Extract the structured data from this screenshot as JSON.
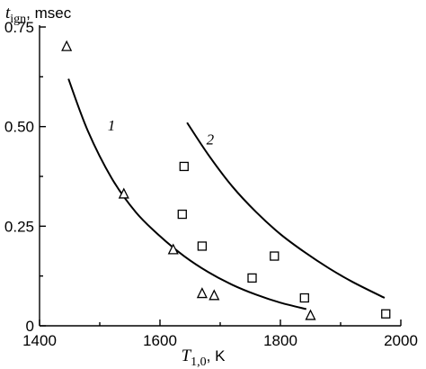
{
  "chart_data": {
    "type": "scatter",
    "xlabel_symbol": "T",
    "xlabel_sub": "1,0",
    "xlabel_unit": ", K",
    "ylabel_symbol": "t",
    "ylabel_sub": "ign",
    "ylabel_unit": ", msec",
    "xlim": [
      1400,
      2000
    ],
    "ylim": [
      0,
      0.75
    ],
    "x_ticks": [
      1400,
      1600,
      1800,
      2000
    ],
    "y_ticks": [
      {
        "value": 0,
        "label": "0"
      },
      {
        "value": 0.25,
        "label": "0.25"
      },
      {
        "value": 0.5,
        "label": "0.50"
      },
      {
        "value": 0.75,
        "label": "0.75"
      }
    ],
    "series": [
      {
        "marker": "triangle",
        "points": [
          {
            "x": 1445,
            "y": 0.7
          },
          {
            "x": 1540,
            "y": 0.33
          },
          {
            "x": 1622,
            "y": 0.19
          },
          {
            "x": 1670,
            "y": 0.08
          },
          {
            "x": 1690,
            "y": 0.075
          },
          {
            "x": 1850,
            "y": 0.025
          }
        ]
      },
      {
        "marker": "square",
        "points": [
          {
            "x": 1640,
            "y": 0.4
          },
          {
            "x": 1637,
            "y": 0.28
          },
          {
            "x": 1670,
            "y": 0.2
          },
          {
            "x": 1753,
            "y": 0.12
          },
          {
            "x": 1790,
            "y": 0.175
          },
          {
            "x": 1840,
            "y": 0.07
          },
          {
            "x": 1975,
            "y": 0.03
          }
        ]
      }
    ],
    "curves": [
      {
        "label": "1",
        "label_at": {
          "x": 1513,
          "y": 0.49
        },
        "points": [
          {
            "x": 1448,
            "y": 0.62
          },
          {
            "x": 1480,
            "y": 0.49
          },
          {
            "x": 1520,
            "y": 0.37
          },
          {
            "x": 1560,
            "y": 0.285
          },
          {
            "x": 1600,
            "y": 0.225
          },
          {
            "x": 1640,
            "y": 0.175
          },
          {
            "x": 1680,
            "y": 0.135
          },
          {
            "x": 1720,
            "y": 0.103
          },
          {
            "x": 1760,
            "y": 0.078
          },
          {
            "x": 1800,
            "y": 0.058
          },
          {
            "x": 1843,
            "y": 0.042
          }
        ]
      },
      {
        "label": "2",
        "label_at": {
          "x": 1677,
          "y": 0.455
        },
        "points": [
          {
            "x": 1645,
            "y": 0.51
          },
          {
            "x": 1680,
            "y": 0.43
          },
          {
            "x": 1720,
            "y": 0.35
          },
          {
            "x": 1760,
            "y": 0.285
          },
          {
            "x": 1800,
            "y": 0.23
          },
          {
            "x": 1840,
            "y": 0.185
          },
          {
            "x": 1880,
            "y": 0.145
          },
          {
            "x": 1920,
            "y": 0.11
          },
          {
            "x": 1973,
            "y": 0.07
          }
        ]
      }
    ]
  }
}
